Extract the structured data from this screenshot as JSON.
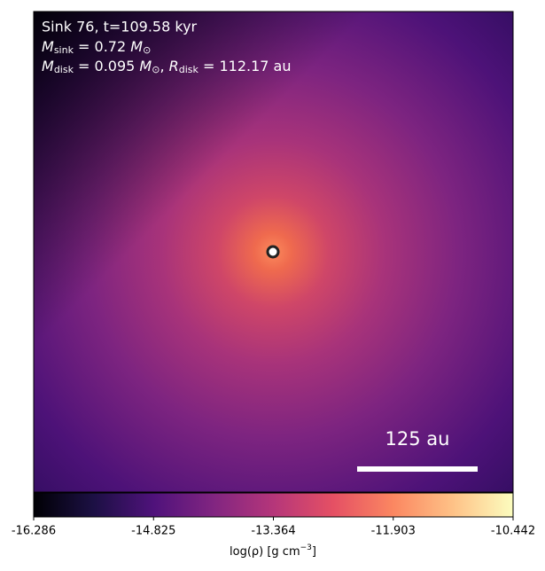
{
  "chart_data": {
    "type": "image",
    "colormap": "magma",
    "annotations": {
      "title": "Sink 76, t=109.58 kyr",
      "sink_mass": [
        "M",
        "sink",
        " = 0.72 ",
        "M",
        "⊙"
      ],
      "disk": [
        "M",
        "disk",
        " = 0.095 ",
        "M",
        "⊙",
        ", ",
        "R",
        "disk",
        " = 112.17 au"
      ]
    },
    "scale_bar": "125 au",
    "colorbar": {
      "label": [
        "log(ρ) [g cm",
        "−3",
        "]"
      ],
      "clim": [
        -16.286,
        -10.442
      ],
      "ticks": [
        -16.286,
        -14.825,
        -13.364,
        -11.903,
        -10.442
      ]
    }
  }
}
